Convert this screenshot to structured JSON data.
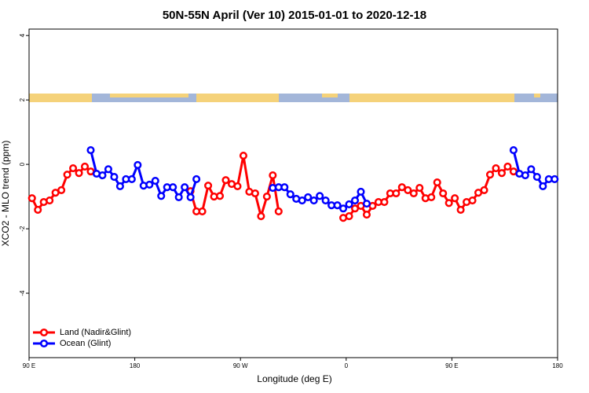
{
  "chart_data": {
    "type": "line",
    "title": "50N-55N April (Ver 10)   2015-01-01 to 2020-12-18",
    "x_label": "Longitude (deg E)",
    "y_label": "XCO2 - MLO trend (ppm)",
    "x": [
      92.5,
      97.5,
      102.5,
      107.5,
      112.5,
      117.5,
      122.5,
      127.5,
      132.5,
      137.5,
      142.5,
      147.5,
      152.5,
      157.5,
      162.5,
      167.5,
      172.5,
      177.5,
      182.5,
      187.5,
      192.5,
      197.5,
      202.5,
      207.5,
      212.5,
      217.5,
      222.5,
      227.5,
      232.5,
      237.5,
      242.5,
      247.5,
      252.5,
      257.5,
      262.5,
      267.5,
      272.5,
      277.5,
      282.5,
      287.5,
      292.5,
      297.5,
      302.5,
      307.5,
      312.5,
      317.5,
      322.5,
      327.5,
      332.5,
      337.5,
      342.5,
      347.5,
      352.5,
      357.5,
      362.5,
      367.5,
      372.5,
      377.5,
      382.5,
      387.5,
      392.5,
      397.5,
      402.5,
      407.5,
      412.5,
      417.5,
      422.5,
      427.5,
      432.5,
      437.5,
      442.5,
      447.5,
      452.5,
      457.5,
      462.5,
      467.5,
      472.5,
      477.5,
      482.5,
      487.5,
      492.5,
      497.5,
      502.5,
      507.5,
      512.5,
      517.5,
      522.5,
      527.5,
      532.5,
      537.5
    ],
    "series": [
      {
        "name": "Land (Nadir&Glint)",
        "color": "#ff0000",
        "values": [
          -1.05,
          -1.41,
          -1.17,
          -1.12,
          -0.88,
          -0.8,
          -0.32,
          -0.12,
          -0.27,
          -0.07,
          -0.22,
          null,
          null,
          null,
          null,
          null,
          null,
          null,
          null,
          null,
          null,
          null,
          null,
          null,
          null,
          null,
          null,
          -0.83,
          -1.46,
          -1.46,
          -0.66,
          -1.0,
          -0.98,
          -0.49,
          -0.61,
          -0.68,
          0.27,
          -0.85,
          -0.9,
          -1.61,
          -1.0,
          -0.34,
          -1.46,
          null,
          null,
          null,
          null,
          null,
          null,
          null,
          null,
          null,
          null,
          -1.66,
          -1.61,
          -1.37,
          -1.29,
          -1.56,
          -1.29,
          -1.17,
          -1.17,
          -0.9,
          -0.9,
          -0.71,
          -0.8,
          -0.9,
          -0.73,
          -1.05,
          -1.02,
          -0.56,
          -0.9,
          -1.2,
          -1.05,
          -1.41,
          -1.17,
          -1.12,
          -0.88,
          -0.8,
          -0.32,
          -0.12,
          -0.27,
          -0.07,
          -0.22,
          null,
          null,
          null,
          null,
          null,
          null,
          null
        ]
      },
      {
        "name": "Ocean (Glint)",
        "color": "#0000ff",
        "values": [
          null,
          null,
          null,
          null,
          null,
          null,
          null,
          null,
          null,
          null,
          0.44,
          -0.29,
          -0.34,
          -0.15,
          -0.39,
          -0.68,
          -0.46,
          -0.46,
          -0.02,
          -0.66,
          -0.63,
          -0.51,
          -0.98,
          -0.71,
          -0.71,
          -1.02,
          -0.71,
          -1.02,
          -0.46,
          null,
          null,
          null,
          null,
          null,
          null,
          null,
          null,
          null,
          null,
          null,
          null,
          -0.73,
          -0.71,
          -0.71,
          -0.93,
          -1.07,
          -1.12,
          -1.02,
          -1.12,
          -0.98,
          -1.12,
          -1.27,
          -1.27,
          -1.37,
          -1.24,
          -1.12,
          -0.85,
          -1.22,
          null,
          null,
          null,
          null,
          null,
          null,
          null,
          null,
          null,
          null,
          null,
          null,
          null,
          null,
          null,
          null,
          null,
          null,
          null,
          null,
          null,
          null,
          null,
          null,
          0.44,
          -0.29,
          -0.34,
          -0.15,
          -0.39,
          -0.68,
          -0.46,
          -0.46
        ]
      }
    ],
    "xlim": [
      90,
      540
    ],
    "ylim": [
      -6,
      4.2
    ],
    "xticks": [
      {
        "value": 90,
        "label": "90 E"
      },
      180,
      {
        "value": 270,
        "label": "90 W"
      },
      {
        "value": 360,
        "label": "0"
      },
      {
        "value": 450,
        "label": "90 E"
      },
      {
        "value": 540,
        "label": "180"
      }
    ],
    "yticks": [
      4,
      2,
      0,
      -2,
      -4
    ],
    "legend": "bottom-left"
  }
}
